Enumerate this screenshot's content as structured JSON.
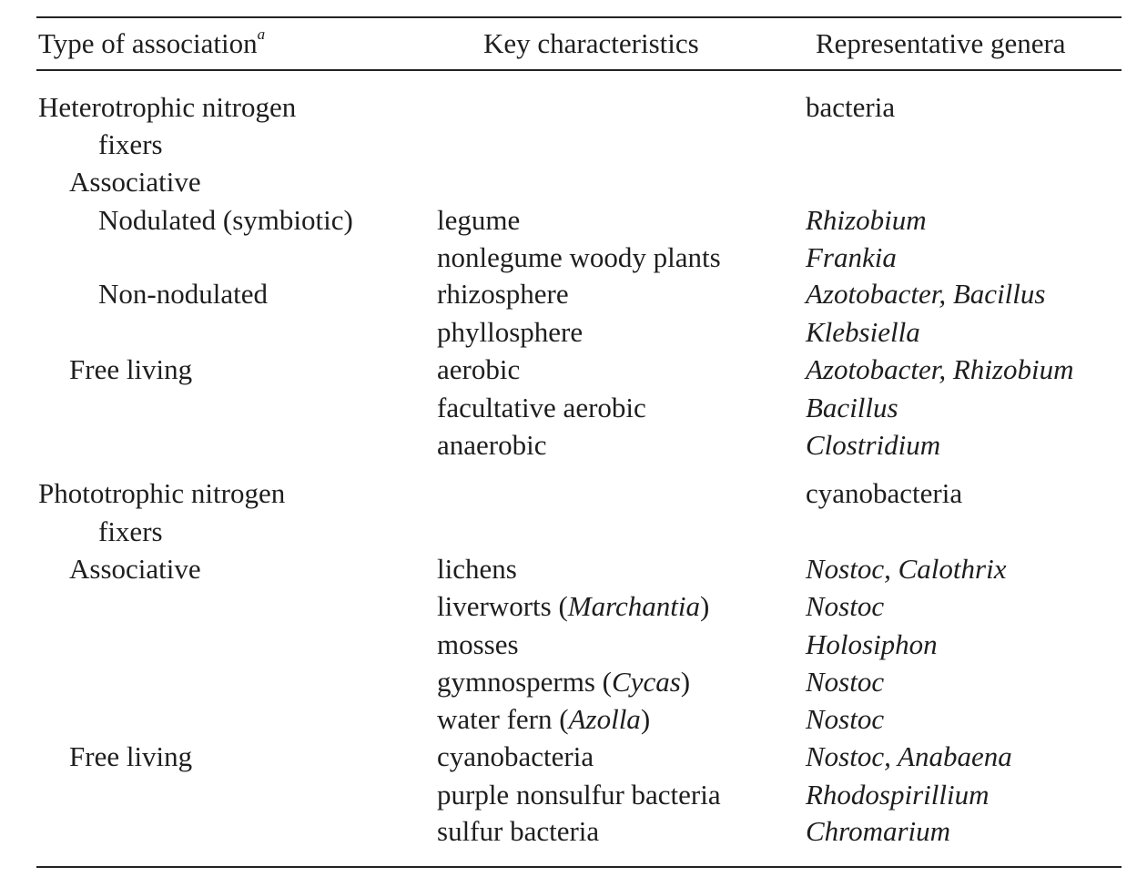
{
  "header": {
    "col1": "Type of association",
    "col1_footnote_mark": "a",
    "col2": "Key characteristics",
    "col3": "Representative genera"
  },
  "rows": {
    "r0": {
      "c1": "Heterotrophic nitrogen",
      "c3": "bacteria"
    },
    "r1": {
      "c1": "fixers"
    },
    "r2": {
      "c1": "Associative"
    },
    "r3": {
      "c1": "Nodulated (symbiotic)",
      "c2": "legume",
      "c3": "Rhizobium"
    },
    "r4": {
      "c2": "nonlegume woody plants",
      "c3": "Frankia"
    },
    "r5": {
      "c1": "Non-nodulated",
      "c2": "rhizosphere",
      "c3": "Azotobacter, Bacillus"
    },
    "r6": {
      "c2": "phyllosphere",
      "c3": "Klebsiella"
    },
    "r7": {
      "c1": "Free living",
      "c2": "aerobic",
      "c3": "Azotobacter, Rhizobium"
    },
    "r8": {
      "c2": "facultative aerobic",
      "c3": "Bacillus"
    },
    "r9": {
      "c2": "anaerobic",
      "c3": "Clostridium"
    },
    "r10": {
      "c1": "Phototrophic nitrogen",
      "c3": "cyanobacteria"
    },
    "r11": {
      "c1": "fixers"
    },
    "r12": {
      "c1": "Associative",
      "c2": "lichens",
      "c3": "Nostoc, Calothrix"
    },
    "r13": {
      "c2_pre": "liverworts (",
      "c2_it": "Marchantia",
      "c2_post": ")",
      "c3": "Nostoc"
    },
    "r14": {
      "c2": "mosses",
      "c3": "Holosiphon"
    },
    "r15": {
      "c2_pre": "gymnosperms (",
      "c2_it": "Cycas",
      "c2_post": ")",
      "c3": "Nostoc"
    },
    "r16": {
      "c2_pre": "water fern (",
      "c2_it": "Azolla",
      "c2_post": ")",
      "c3": "Nostoc"
    },
    "r17": {
      "c1": "Free living",
      "c2": "cyanobacteria",
      "c3": "Nostoc, Anabaena"
    },
    "r18": {
      "c2": "purple nonsulfur bacteria",
      "c3": "Rhodospirillium"
    },
    "r19": {
      "c2": "sulfur bacteria",
      "c3": "Chromarium"
    }
  }
}
